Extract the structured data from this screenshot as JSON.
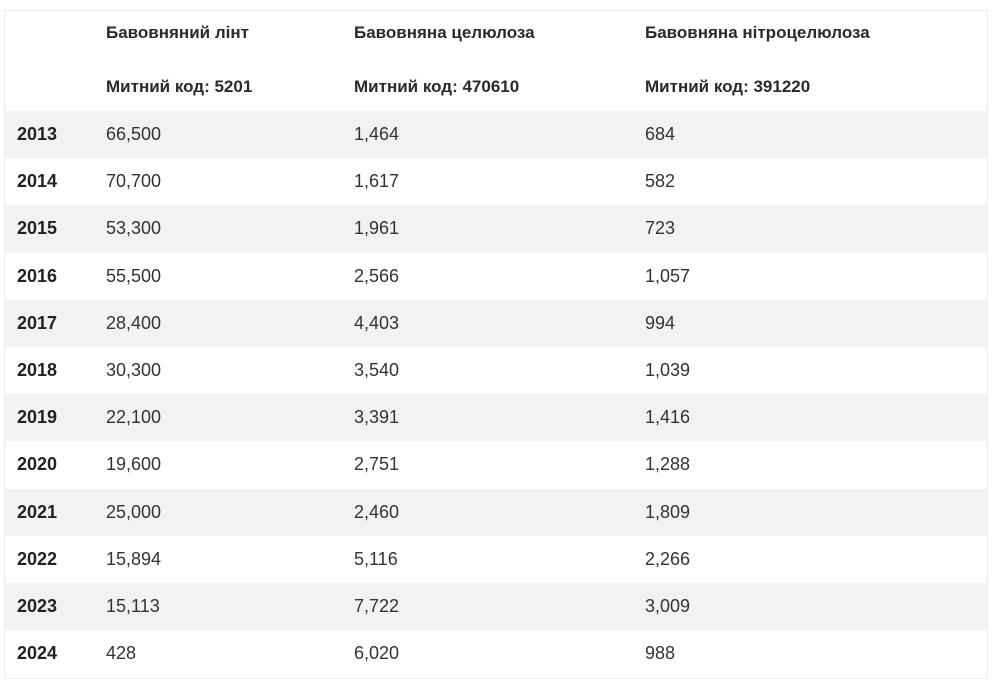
{
  "table": {
    "columns": [
      {
        "title": "",
        "code": ""
      },
      {
        "title": "Бавовняний лінт",
        "code": "Митний код: 5201"
      },
      {
        "title": "Бавовняна целюлоза",
        "code": "Митний код: 470610"
      },
      {
        "title": "Бавовняна нітроцелюлоза",
        "code": "Митний код: 391220"
      }
    ],
    "rows": [
      {
        "year": "2013",
        "lint": "66,500",
        "cellulose": "1,464",
        "nitro": "684"
      },
      {
        "year": "2014",
        "lint": "70,700",
        "cellulose": "1,617",
        "nitro": "582"
      },
      {
        "year": "2015",
        "lint": "53,300",
        "cellulose": "1,961",
        "nitro": "723"
      },
      {
        "year": "2016",
        "lint": "55,500",
        "cellulose": "2,566",
        "nitro": "1,057"
      },
      {
        "year": "2017",
        "lint": "28,400",
        "cellulose": "4,403",
        "nitro": "994"
      },
      {
        "year": "2018",
        "lint": "30,300",
        "cellulose": "3,540",
        "nitro": "1,039"
      },
      {
        "year": "2019",
        "lint": "22,100",
        "cellulose": "3,391",
        "nitro": "1,416"
      },
      {
        "year": "2020",
        "lint": "19,600",
        "cellulose": "2,751",
        "nitro": "1,288"
      },
      {
        "year": "2021",
        "lint": "25,000",
        "cellulose": "2,460",
        "nitro": "1,809"
      },
      {
        "year": "2022",
        "lint": "15,894",
        "cellulose": "5,116",
        "nitro": "2,266"
      },
      {
        "year": "2023",
        "lint": "15,113",
        "cellulose": "7,722",
        "nitro": "3,009"
      },
      {
        "year": "2024",
        "lint": "428",
        "cellulose": "6,020",
        "nitro": "988"
      }
    ]
  },
  "colors": {
    "stripe": "#f2f2f2",
    "text": "#222222",
    "border": "#ececec"
  }
}
